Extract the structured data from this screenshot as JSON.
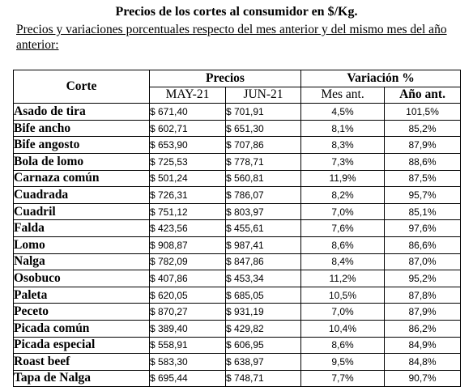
{
  "title": "Precios de los cortes al consumidor en $/Kg.",
  "subtitle": "Precios y variaciones porcentuales respecto del mes anterior y del mismo mes del año anterior:",
  "headers": {
    "corte": "Corte",
    "precios": "Precios",
    "variacion": "Variación %",
    "may": "MAY-21",
    "jun": "JUN-21",
    "mes_ant": "Mes ant.",
    "anio_ant": "Año ant."
  },
  "rows": [
    {
      "corte": "Asado de tira",
      "may": "$ 671,40",
      "jun": "$ 701,91",
      "mes": "4,5%",
      "anio": "101,5%"
    },
    {
      "corte": "Bife ancho",
      "may": "$ 602,71",
      "jun": "$ 651,30",
      "mes": "8,1%",
      "anio": "85,2%"
    },
    {
      "corte": "Bife angosto",
      "may": "$ 653,90",
      "jun": "$ 707,86",
      "mes": "8,3%",
      "anio": "87,9%"
    },
    {
      "corte": "Bola de lomo",
      "may": "$ 725,53",
      "jun": "$ 778,71",
      "mes": "7,3%",
      "anio": "88,6%"
    },
    {
      "corte": "Carnaza común",
      "may": "$ 501,24",
      "jun": "$ 560,81",
      "mes": "11,9%",
      "anio": "87,5%"
    },
    {
      "corte": "Cuadrada",
      "may": "$ 726,31",
      "jun": "$ 786,07",
      "mes": "8,2%",
      "anio": "95,7%"
    },
    {
      "corte": "Cuadril",
      "may": "$ 751,12",
      "jun": "$ 803,97",
      "mes": "7,0%",
      "anio": "85,1%"
    },
    {
      "corte": "Falda",
      "may": "$ 423,56",
      "jun": "$ 455,61",
      "mes": "7,6%",
      "anio": "97,6%"
    },
    {
      "corte": "Lomo",
      "may": "$ 908,87",
      "jun": "$ 987,41",
      "mes": "8,6%",
      "anio": "86,6%"
    },
    {
      "corte": "Nalga",
      "may": "$ 782,09",
      "jun": "$ 847,86",
      "mes": "8,4%",
      "anio": "87,0%"
    },
    {
      "corte": "Osobuco",
      "may": "$ 407,86",
      "jun": "$ 453,34",
      "mes": "11,2%",
      "anio": "95,2%"
    },
    {
      "corte": "Paleta",
      "may": "$ 620,05",
      "jun": "$ 685,05",
      "mes": "10,5%",
      "anio": "87,8%"
    },
    {
      "corte": "Peceto",
      "may": "$ 870,27",
      "jun": "$ 931,19",
      "mes": "7,0%",
      "anio": "87,9%"
    },
    {
      "corte": "Picada común",
      "may": "$ 389,40",
      "jun": "$ 429,82",
      "mes": "10,4%",
      "anio": "86,2%"
    },
    {
      "corte": "Picada especial",
      "may": "$ 558,91",
      "jun": "$ 606,95",
      "mes": "8,6%",
      "anio": "84,9%"
    },
    {
      "corte": "Roast beef",
      "may": "$ 583,30",
      "jun": "$ 638,97",
      "mes": "9,5%",
      "anio": "84,8%"
    },
    {
      "corte": "Tapa de Nalga",
      "may": "$ 695,44",
      "jun": "$ 748,71",
      "mes": "7,7%",
      "anio": "90,7%"
    }
  ]
}
